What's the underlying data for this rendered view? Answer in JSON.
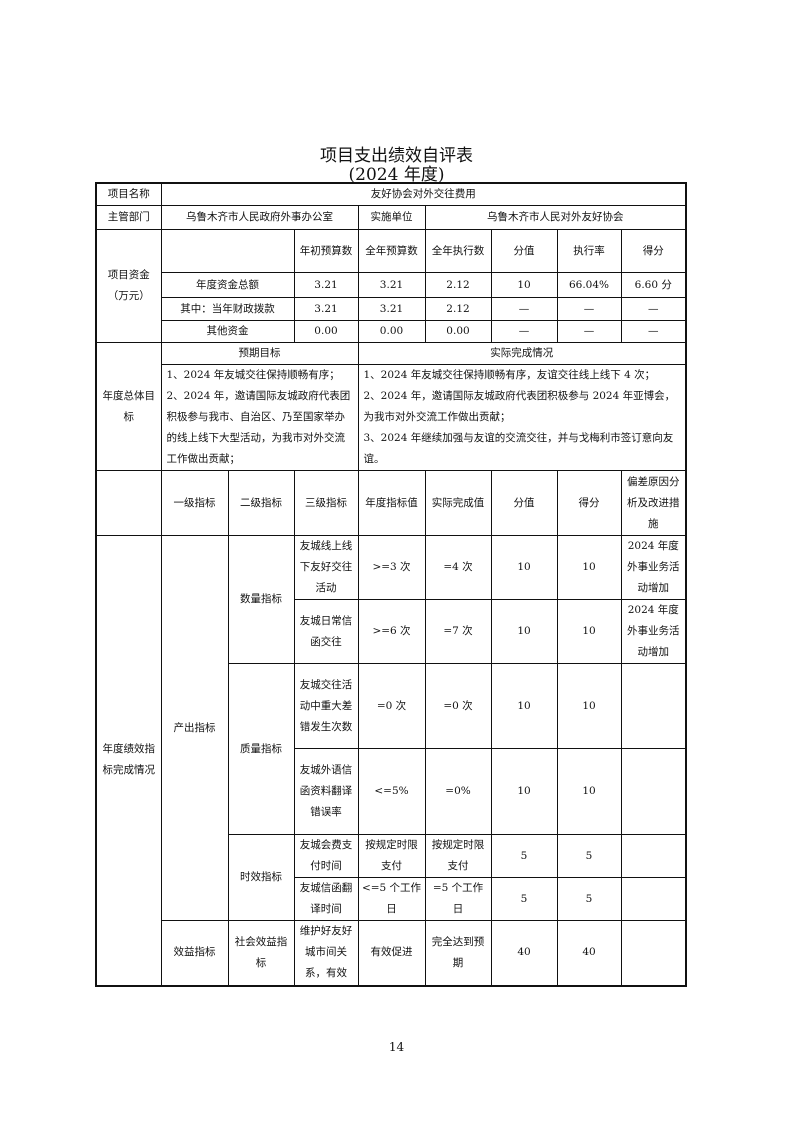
{
  "title": "项目支出绩效自评表",
  "subtitle": "(2024 年度)",
  "labels": {
    "project_name": "项目名称",
    "dept": "主管部门",
    "impl_unit": "实施单位",
    "funds": "项目资金（万元）",
    "goals": "年度总体目标",
    "expected": "预期目标",
    "actual": "实际完成情况",
    "perf": "年度绩效指标完成情况"
  },
  "project_name": "友好协会对外交往费用",
  "dept": "乌鲁木齐市人民政府外事办公室",
  "impl_unit": "乌鲁木齐市人民对外友好协会",
  "fund_headers": [
    "年初预算数",
    "全年预算数",
    "全年执行数",
    "分值",
    "执行率",
    "得分"
  ],
  "fund_rows": [
    {
      "label": "年度资金总额",
      "values": [
        "3.21",
        "3.21",
        "2.12",
        "10",
        "66.04%",
        "6.60 分"
      ]
    },
    {
      "label": "其中：当年财政拨款",
      "values": [
        "3.21",
        "3.21",
        "2.12",
        "—",
        "—",
        "—"
      ]
    },
    {
      "label": "其他资金",
      "values": [
        "0.00",
        "0.00",
        "0.00",
        "—",
        "—",
        "—"
      ]
    }
  ],
  "expected_goals": [
    "1、2024 年友城交往保持顺畅有序；",
    "2、2024 年，邀请国际友城政府代表团积极参与我市、自治区、乃至国家举办的线上线下大型活动，为我市对外交流工作做出贡献；"
  ],
  "actual_goals": [
    "1、2024 年友城交往保持顺畅有序，友谊交往线上线下 4 次；",
    "2、2024 年，邀请国际友城政府代表团积极参与 2024 年亚博会，为我市对外交流工作做出贡献；",
    "3、2024 年继续加强与友谊的交流交往，并与戈梅利市签订意向友谊。"
  ],
  "indicator_headers": [
    "一级指标",
    "二级指标",
    "三级指标",
    "年度指标值",
    "实际完成值",
    "分值",
    "得分",
    "偏差原因分析及改进措施"
  ],
  "level1": [
    "产出指标",
    "效益指标"
  ],
  "level2": [
    "数量指标",
    "质量指标",
    "时效指标",
    "社会效益指标"
  ],
  "indicators": [
    {
      "name": "友城线上线下友好交往活动",
      "target": ">=3 次",
      "actual": "=4 次",
      "score_value": "10",
      "score": "10",
      "note": "2024 年度外事业务活动增加"
    },
    {
      "name": "友城日常信函交往",
      "target": ">=6 次",
      "actual": "=7 次",
      "score_value": "10",
      "score": "10",
      "note": "2024 年度外事业务活动增加"
    },
    {
      "name": "友城交往活动中重大差错发生次数",
      "target": "=0 次",
      "actual": "=0 次",
      "score_value": "10",
      "score": "10",
      "note": ""
    },
    {
      "name": "友城外语信函资料翻译错误率",
      "target": "<=5%",
      "actual": "=0%",
      "score_value": "10",
      "score": "10",
      "note": ""
    },
    {
      "name": "友城会费支付时间",
      "target": "按规定时限支付",
      "actual": "按规定时限支付",
      "score_value": "5",
      "score": "5",
      "note": ""
    },
    {
      "name": "友城信函翻译时间",
      "target": "<=5 个工作日",
      "actual": "=5 个工作日",
      "score_value": "5",
      "score": "5",
      "note": ""
    },
    {
      "name": "维护好友好城市间关系，有效",
      "target": "有效促进",
      "actual": "完全达到预期",
      "score_value": "40",
      "score": "40",
      "note": ""
    }
  ],
  "page_number": "14"
}
